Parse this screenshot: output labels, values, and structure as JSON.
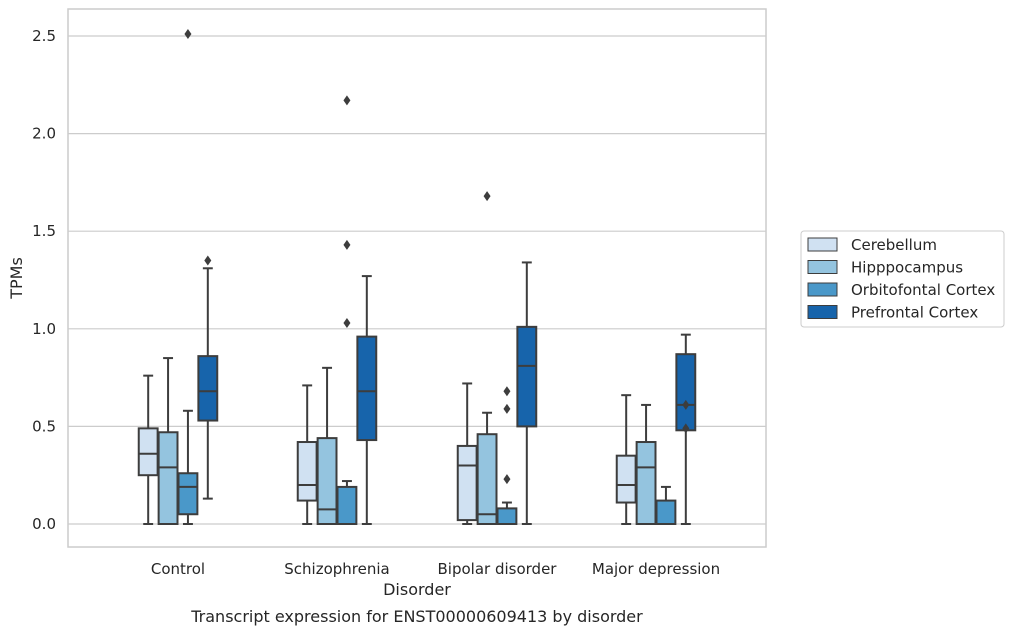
{
  "chart_data": {
    "type": "box",
    "caption": "Transcript expression for ENST00000609413 by disorder",
    "xlabel": "Disorder",
    "ylabel": "TPMs",
    "ylim": [
      -0.12,
      2.64
    ],
    "yticks": [
      "0.0",
      "0.5",
      "1.0",
      "1.5",
      "2.0",
      "2.5"
    ],
    "grid": "horizontal",
    "legend_position": "right",
    "categories": [
      "Control",
      "Schizophrenia",
      "Bipolar disorder",
      "Major depression"
    ],
    "series": [
      {
        "name": "Cerebellum",
        "color": "#d0e1f2",
        "boxes": [
          {
            "whisker_low": 0.0,
            "q1": 0.25,
            "median": 0.36,
            "q3": 0.49,
            "whisker_high": 0.76,
            "outliers": []
          },
          {
            "whisker_low": 0.0,
            "q1": 0.12,
            "median": 0.2,
            "q3": 0.42,
            "whisker_high": 0.71,
            "outliers": []
          },
          {
            "whisker_low": 0.0,
            "q1": 0.02,
            "median": 0.3,
            "q3": 0.4,
            "whisker_high": 0.72,
            "outliers": []
          },
          {
            "whisker_low": 0.0,
            "q1": 0.11,
            "median": 0.2,
            "q3": 0.35,
            "whisker_high": 0.66,
            "outliers": []
          }
        ]
      },
      {
        "name": "Hipppocampus",
        "color": "#94c4df",
        "boxes": [
          {
            "whisker_low": 0.0,
            "q1": 0.0,
            "median": 0.29,
            "q3": 0.47,
            "whisker_high": 0.85,
            "outliers": []
          },
          {
            "whisker_low": 0.0,
            "q1": 0.0,
            "median": 0.075,
            "q3": 0.44,
            "whisker_high": 0.8,
            "outliers": []
          },
          {
            "whisker_low": 0.0,
            "q1": 0.0,
            "median": 0.05,
            "q3": 0.46,
            "whisker_high": 0.57,
            "outliers": [
              1.68
            ]
          },
          {
            "whisker_low": 0.0,
            "q1": 0.0,
            "median": 0.29,
            "q3": 0.42,
            "whisker_high": 0.61,
            "outliers": []
          }
        ]
      },
      {
        "name": "Orbitofontal Cortex",
        "color": "#4a98c9",
        "boxes": [
          {
            "whisker_low": 0.0,
            "q1": 0.05,
            "median": 0.19,
            "q3": 0.26,
            "whisker_high": 0.58,
            "outliers": [
              2.51
            ]
          },
          {
            "whisker_low": 0.0,
            "q1": 0.0,
            "median": 0.0,
            "q3": 0.19,
            "whisker_high": 0.22,
            "outliers": [
              2.17,
              1.43,
              1.03
            ]
          },
          {
            "whisker_low": 0.0,
            "q1": 0.0,
            "median": 0.0,
            "q3": 0.08,
            "whisker_high": 0.11,
            "outliers": [
              0.68,
              0.59,
              0.23
            ]
          },
          {
            "whisker_low": 0.0,
            "q1": 0.0,
            "median": 0.0,
            "q3": 0.12,
            "whisker_high": 0.19,
            "outliers": []
          }
        ]
      },
      {
        "name": "Prefrontal Cortex",
        "color": "#1764ab",
        "boxes": [
          {
            "whisker_low": 0.13,
            "q1": 0.53,
            "median": 0.68,
            "q3": 0.86,
            "whisker_high": 1.31,
            "outliers": [
              1.35
            ]
          },
          {
            "whisker_low": 0.0,
            "q1": 0.43,
            "median": 0.68,
            "q3": 0.96,
            "whisker_high": 1.27,
            "outliers": []
          },
          {
            "whisker_low": 0.0,
            "q1": 0.5,
            "median": 0.81,
            "q3": 1.01,
            "whisker_high": 1.34,
            "outliers": []
          },
          {
            "whisker_low": 0.0,
            "q1": 0.48,
            "median": 0.61,
            "q3": 0.87,
            "whisker_high": 0.97,
            "outliers": [
              0.61,
              0.49
            ]
          }
        ]
      }
    ]
  }
}
